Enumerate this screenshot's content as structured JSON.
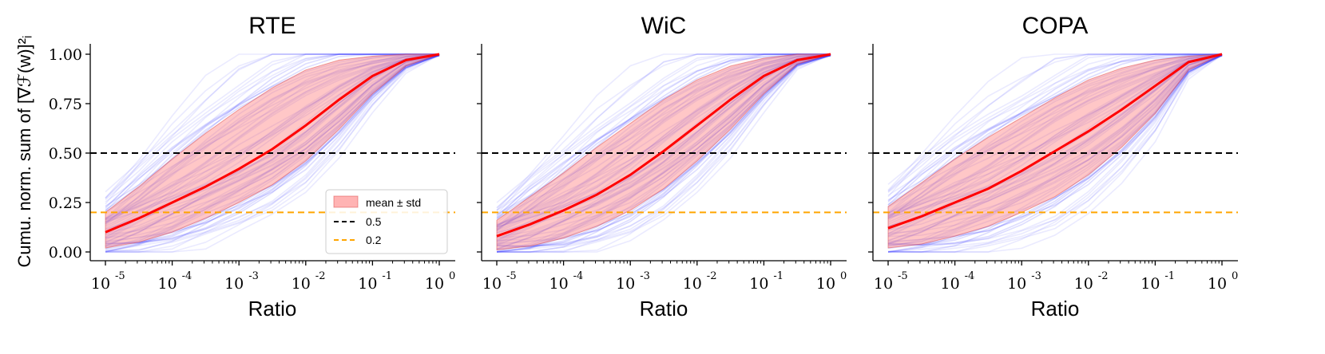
{
  "chart_data": [
    {
      "type": "line",
      "title": "RTE",
      "xlabel": "Ratio",
      "ylabel": "Cumu. norm. sum of [∇ℱ(w)]²ᵢ",
      "xscale": "log",
      "xlim_exp": [
        -5,
        0
      ],
      "ylim": [
        0,
        1
      ],
      "x_tick_labels": [
        "10",
        "10",
        "10",
        "10",
        "10",
        "10"
      ],
      "x_tick_exponents": [
        "-5",
        "-4",
        "-3",
        "-2",
        "-1",
        "0"
      ],
      "y_tick_labels": [
        "0.00",
        "0.25",
        "0.50",
        "0.75",
        "1.00"
      ],
      "x_log10": [
        -5,
        -4.5,
        -4,
        -3.5,
        -3,
        -2.5,
        -2,
        -1.5,
        -1,
        -0.5,
        0
      ],
      "mean": [
        0.1,
        0.17,
        0.25,
        0.33,
        0.42,
        0.52,
        0.64,
        0.77,
        0.89,
        0.97,
        1.0
      ],
      "std_lower": [
        0.02,
        0.05,
        0.1,
        0.17,
        0.25,
        0.34,
        0.46,
        0.62,
        0.8,
        0.94,
        1.0
      ],
      "std_upper": [
        0.2,
        0.33,
        0.47,
        0.6,
        0.72,
        0.83,
        0.92,
        0.97,
        0.99,
        1.0,
        1.0
      ],
      "hlines": [
        {
          "y": 0.5,
          "color": "#000000"
        },
        {
          "y": 0.2,
          "color": "#FFA500"
        }
      ],
      "legend": {
        "position": "lower-right",
        "entries": [
          "mean ± std",
          "0.5",
          "0.2"
        ]
      }
    },
    {
      "type": "line",
      "title": "WiC",
      "xlabel": "Ratio",
      "xscale": "log",
      "xlim_exp": [
        -5,
        0
      ],
      "ylim": [
        0,
        1
      ],
      "x_tick_labels": [
        "10",
        "10",
        "10",
        "10",
        "10",
        "10"
      ],
      "x_tick_exponents": [
        "-5",
        "-4",
        "-3",
        "-2",
        "-1",
        "0"
      ],
      "x_log10": [
        -5,
        -4.5,
        -4,
        -3.5,
        -3,
        -2.5,
        -2,
        -1.5,
        -1,
        -0.5,
        0
      ],
      "mean": [
        0.08,
        0.14,
        0.21,
        0.29,
        0.39,
        0.51,
        0.64,
        0.77,
        0.89,
        0.97,
        1.0
      ],
      "std_lower": [
        0.01,
        0.03,
        0.07,
        0.13,
        0.21,
        0.32,
        0.46,
        0.62,
        0.8,
        0.95,
        1.0
      ],
      "std_upper": [
        0.16,
        0.28,
        0.4,
        0.53,
        0.65,
        0.77,
        0.87,
        0.94,
        0.98,
        1.0,
        1.0
      ],
      "hlines": [
        {
          "y": 0.5,
          "color": "#000000"
        },
        {
          "y": 0.2,
          "color": "#FFA500"
        }
      ]
    },
    {
      "type": "line",
      "title": "COPA",
      "xlabel": "Ratio",
      "xscale": "log",
      "xlim_exp": [
        -5,
        0
      ],
      "ylim": [
        0,
        1
      ],
      "x_tick_labels": [
        "10",
        "10",
        "10",
        "10",
        "10",
        "10"
      ],
      "x_tick_exponents": [
        "-5",
        "-4",
        "-3",
        "-2",
        "-1",
        "0"
      ],
      "x_log10": [
        -5,
        -4.5,
        -4,
        -3.5,
        -3,
        -2.5,
        -2,
        -1.5,
        -1,
        -0.5,
        0
      ],
      "mean": [
        0.12,
        0.18,
        0.25,
        0.32,
        0.41,
        0.51,
        0.61,
        0.72,
        0.84,
        0.96,
        1.0
      ],
      "std_lower": [
        0.02,
        0.04,
        0.08,
        0.13,
        0.2,
        0.28,
        0.39,
        0.53,
        0.7,
        0.92,
        1.0
      ],
      "std_upper": [
        0.23,
        0.35,
        0.47,
        0.58,
        0.68,
        0.78,
        0.87,
        0.93,
        0.97,
        0.99,
        1.0
      ],
      "hlines": [
        {
          "y": 0.5,
          "color": "#000000"
        },
        {
          "y": 0.2,
          "color": "#FFA500"
        }
      ]
    }
  ],
  "colors": {
    "mean_line": "#FF0000",
    "band": "#FF9999",
    "traces": "#3333FF",
    "hline_half": "#000000",
    "hline_fifth": "#FFA500"
  }
}
